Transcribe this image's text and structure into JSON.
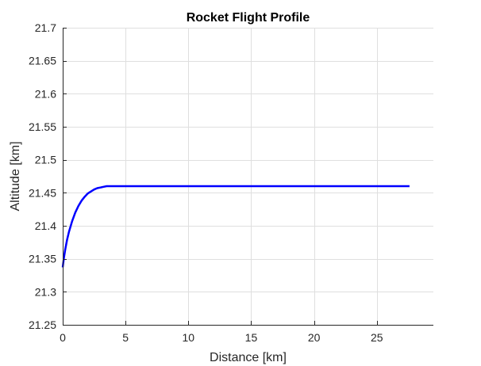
{
  "chart_data": {
    "type": "line",
    "title": "Rocket Flight Profile",
    "xlabel": "Distance [km]",
    "ylabel": "Altitude [km]",
    "xlim": [
      0,
      29.5
    ],
    "ylim": [
      21.25,
      21.7
    ],
    "xticks": [
      0,
      5,
      10,
      15,
      20,
      25
    ],
    "xtick_labels": [
      "0",
      "5",
      "10",
      "15",
      "20",
      "25"
    ],
    "yticks": [
      21.25,
      21.3,
      21.35,
      21.4,
      21.45,
      21.5,
      21.55,
      21.6,
      21.65,
      21.7
    ],
    "ytick_labels": [
      "21.25",
      "21.3",
      "21.35",
      "21.4",
      "21.45",
      "21.5",
      "21.55",
      "21.6",
      "21.65",
      "21.7"
    ],
    "grid": true,
    "series": [
      {
        "color": "#0000ff",
        "x": [
          0,
          0.1,
          0.2,
          0.35,
          0.5,
          0.75,
          1.0,
          1.25,
          1.5,
          1.75,
          2.0,
          2.25,
          2.5,
          2.75,
          3.0,
          3.25,
          3.5,
          4.0,
          5.0,
          8.0,
          12.0,
          16.0,
          20.0,
          24.0,
          27.6
        ],
        "y": [
          21.337,
          21.352,
          21.364,
          21.379,
          21.391,
          21.407,
          21.42,
          21.43,
          21.438,
          21.444,
          21.449,
          21.452,
          21.455,
          21.457,
          21.458,
          21.459,
          21.46,
          21.46,
          21.46,
          21.46,
          21.46,
          21.46,
          21.46,
          21.46,
          21.46
        ]
      }
    ]
  }
}
